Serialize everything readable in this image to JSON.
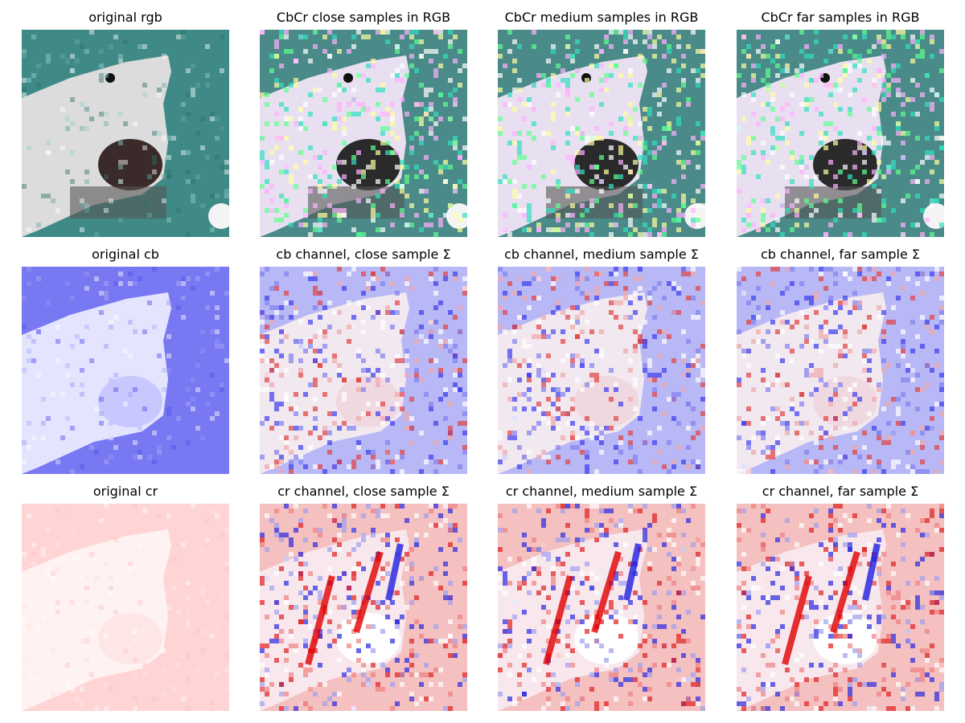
{
  "panels": [
    {
      "title": "original rgb"
    },
    {
      "title": "CbCr close samples in RGB"
    },
    {
      "title": "CbCr medium samples in RGB"
    },
    {
      "title": "CbCr far samples in RGB"
    },
    {
      "title": "original cb"
    },
    {
      "title": "cb channel, close sample Σ"
    },
    {
      "title": "cb channel, medium sample Σ"
    },
    {
      "title": "cb channel, far sample Σ"
    },
    {
      "title": "original cr"
    },
    {
      "title": "cr channel, close sample Σ"
    },
    {
      "title": "cr channel, medium sample Σ"
    },
    {
      "title": "cr channel, far sample Σ"
    }
  ]
}
